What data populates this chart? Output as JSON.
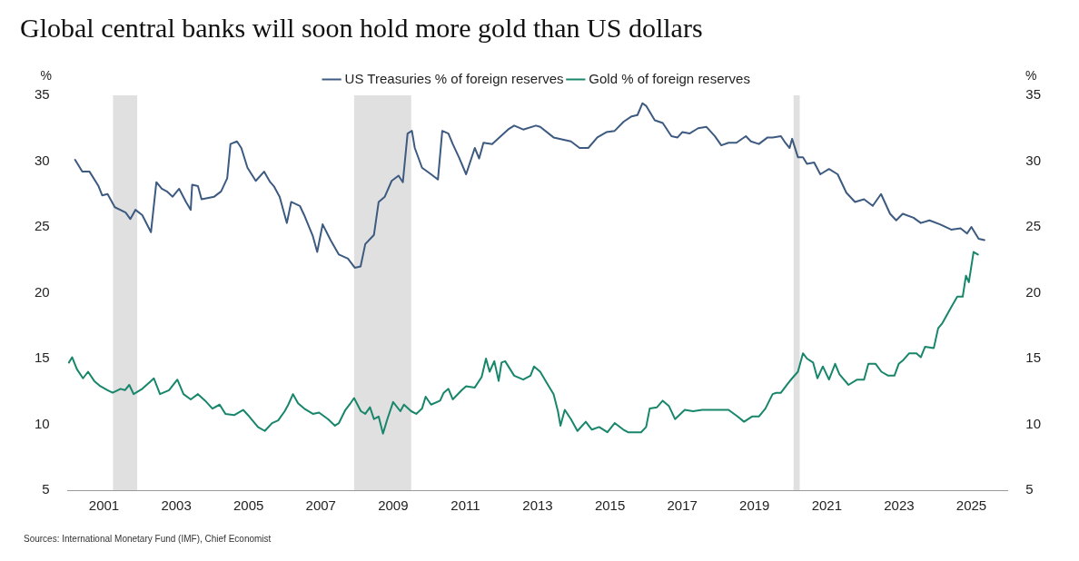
{
  "chart_data": {
    "type": "line",
    "title": "Global central banks will soon hold more gold than US dollars",
    "ylabel": "%",
    "y2label": "%",
    "xlim": [
      2000,
      2026
    ],
    "xticks": [
      2001,
      2003,
      2005,
      2007,
      2009,
      2011,
      2013,
      2015,
      2017,
      2019,
      2021,
      2023,
      2025
    ],
    "ylim": [
      5,
      35
    ],
    "yticks": [
      5,
      10,
      15,
      20,
      25,
      30,
      35
    ],
    "y2lim": [
      5,
      35
    ],
    "y2ticks": [
      5,
      10,
      15,
      20,
      25,
      30,
      35
    ],
    "grid": false,
    "legend": "top",
    "marker": "none",
    "line_style": "solid",
    "bands": [
      {
        "axis": "x",
        "from": 2001.25,
        "to": 2001.92,
        "color": "#e0e0e0"
      },
      {
        "axis": "x",
        "from": 2007.92,
        "to": 2009.5,
        "color": "#e0e0e0"
      },
      {
        "axis": "x",
        "from": 2020.08,
        "to": 2020.25,
        "color": "#e0e0e0"
      }
    ],
    "series": [
      {
        "name": "US Treasuries % of foreign reserves",
        "color": "#3d5a80",
        "x": [
          2000.2,
          2000.4,
          2000.6,
          2000.85,
          2000.95,
          2001.1,
          2001.3,
          2001.6,
          2001.73,
          2001.87,
          2002.06,
          2002.3,
          2002.45,
          2002.6,
          2002.74,
          2002.9,
          2003.08,
          2003.27,
          2003.4,
          2003.44,
          2003.6,
          2003.7,
          2004.05,
          2004.24,
          2004.41,
          2004.5,
          2004.68,
          2004.8,
          2004.97,
          2005.2,
          2005.43,
          2005.6,
          2005.7,
          2005.86,
          2006.06,
          2006.18,
          2006.42,
          2006.54,
          2006.78,
          2006.9,
          2007.05,
          2007.27,
          2007.5,
          2007.75,
          2007.94,
          2008.1,
          2008.23,
          2008.47,
          2008.6,
          2008.77,
          2008.96,
          2009.15,
          2009.27,
          2009.4,
          2009.52,
          2009.6,
          2009.8,
          2010.05,
          2010.24,
          2010.36,
          2010.53,
          2010.65,
          2010.82,
          2011.02,
          2011.26,
          2011.38,
          2011.5,
          2011.74,
          2011.98,
          2012.18,
          2012.35,
          2012.6,
          2012.95,
          2013.07,
          2013.44,
          2013.92,
          2014.16,
          2014.4,
          2014.65,
          2014.9,
          2015.13,
          2015.38,
          2015.6,
          2015.76,
          2015.9,
          2016.0,
          2016.24,
          2016.46,
          2016.7,
          2016.87,
          2017.0,
          2017.2,
          2017.44,
          2017.67,
          2017.9,
          2018.08,
          2018.28,
          2018.5,
          2018.76,
          2018.9,
          2019.12,
          2019.36,
          2019.5,
          2019.73,
          2019.85,
          2019.97,
          2020.04,
          2020.2,
          2020.34,
          2020.45,
          2020.65,
          2020.82,
          2021.06,
          2021.3,
          2021.54,
          2021.78,
          2022.03,
          2022.27,
          2022.5,
          2022.75,
          2022.92,
          2023.1,
          2023.4,
          2023.6,
          2023.84,
          2024.13,
          2024.44,
          2024.7,
          2024.88,
          2025.0,
          2025.2,
          2025.36
        ],
        "values": [
          30.1,
          29.2,
          29.2,
          28.1,
          27.4,
          27.5,
          26.5,
          26.1,
          25.6,
          26.3,
          25.9,
          24.6,
          28.4,
          27.9,
          27.7,
          27.3,
          27.9,
          26.9,
          26.3,
          28.2,
          28.1,
          27.1,
          27.3,
          27.7,
          28.7,
          31.3,
          31.5,
          31.0,
          29.5,
          28.5,
          29.2,
          28.4,
          28.1,
          27.3,
          25.3,
          26.9,
          26.6,
          25.9,
          24.3,
          23.1,
          25.2,
          24.0,
          22.9,
          22.6,
          21.9,
          22.0,
          23.7,
          24.4,
          26.9,
          27.3,
          28.5,
          28.9,
          28.4,
          32.1,
          32.3,
          31.0,
          29.5,
          29.0,
          28.6,
          32.3,
          32.1,
          31.3,
          30.3,
          29.0,
          31.0,
          30.2,
          31.4,
          31.3,
          31.9,
          32.4,
          32.7,
          32.4,
          32.7,
          32.6,
          31.8,
          31.5,
          31.0,
          31.0,
          31.8,
          32.2,
          32.3,
          33.0,
          33.4,
          33.5,
          34.4,
          34.2,
          33.1,
          32.9,
          31.9,
          31.8,
          32.2,
          32.1,
          32.5,
          32.6,
          31.9,
          31.2,
          31.4,
          31.4,
          31.9,
          31.5,
          31.3,
          31.8,
          31.8,
          31.9,
          31.4,
          31.0,
          31.7,
          30.3,
          30.3,
          29.8,
          29.9,
          29.0,
          29.4,
          29.0,
          27.6,
          26.9,
          27.1,
          26.6,
          27.5,
          26.0,
          25.5,
          26.0,
          25.7,
          25.3,
          25.5,
          25.2,
          24.8,
          24.9,
          24.5,
          25.0,
          24.1,
          24.0
        ]
      },
      {
        "name": "Gold % of foreign reserves",
        "color": "#17866a",
        "x": [
          2000.03,
          2000.12,
          2000.25,
          2000.42,
          2000.56,
          2000.73,
          2000.9,
          2001.1,
          2001.24,
          2001.46,
          2001.58,
          2001.7,
          2001.82,
          2002.06,
          2002.3,
          2002.38,
          2002.55,
          2002.8,
          2003.03,
          2003.2,
          2003.4,
          2003.6,
          2003.8,
          2004.0,
          2004.2,
          2004.36,
          2004.6,
          2004.85,
          2005.02,
          2005.26,
          2005.45,
          2005.65,
          2005.82,
          2006.0,
          2006.1,
          2006.23,
          2006.37,
          2006.54,
          2006.78,
          2006.95,
          2007.2,
          2007.39,
          2007.5,
          2007.68,
          2007.82,
          2007.92,
          2008.11,
          2008.23,
          2008.36,
          2008.47,
          2008.6,
          2008.72,
          2008.84,
          2009.0,
          2009.2,
          2009.3,
          2009.5,
          2009.64,
          2009.8,
          2009.9,
          2010.05,
          2010.3,
          2010.4,
          2010.53,
          2010.65,
          2010.9,
          2011.02,
          2011.26,
          2011.45,
          2011.57,
          2011.67,
          2011.8,
          2011.92,
          2012.0,
          2012.1,
          2012.35,
          2012.6,
          2012.8,
          2012.9,
          2013.07,
          2013.24,
          2013.44,
          2013.56,
          2013.63,
          2013.75,
          2013.92,
          2014.1,
          2014.33,
          2014.5,
          2014.7,
          2014.93,
          2015.13,
          2015.37,
          2015.5,
          2015.74,
          2015.86,
          2016.0,
          2016.1,
          2016.3,
          2016.46,
          2016.63,
          2016.8,
          2017.07,
          2017.3,
          2017.55,
          2017.8,
          2018.05,
          2018.28,
          2018.53,
          2018.71,
          2018.93,
          2019.12,
          2019.3,
          2019.5,
          2019.6,
          2019.73,
          2019.92,
          2020.04,
          2020.2,
          2020.34,
          2020.45,
          2020.62,
          2020.74,
          2020.89,
          2021.06,
          2021.23,
          2021.35,
          2021.6,
          2021.84,
          2022.03,
          2022.15,
          2022.35,
          2022.51,
          2022.7,
          2022.87,
          2022.99,
          2023.12,
          2023.28,
          2023.48,
          2023.6,
          2023.72,
          2023.96,
          2024.08,
          2024.2,
          2024.44,
          2024.61,
          2024.76,
          2024.85,
          2024.93,
          2025.06,
          2025.18
        ],
        "values": [
          14.7,
          15.1,
          14.2,
          13.5,
          14.0,
          13.3,
          12.9,
          12.6,
          12.4,
          12.7,
          12.6,
          13.0,
          12.3,
          12.7,
          13.3,
          13.5,
          12.3,
          12.6,
          13.4,
          12.3,
          11.9,
          12.3,
          11.8,
          11.2,
          11.5,
          10.8,
          10.7,
          11.1,
          10.6,
          9.8,
          9.5,
          10.1,
          10.3,
          11.0,
          11.5,
          12.3,
          11.6,
          11.2,
          10.8,
          10.9,
          10.4,
          9.9,
          10.1,
          11.1,
          11.6,
          12.0,
          11.0,
          10.8,
          11.3,
          10.4,
          10.6,
          9.3,
          10.4,
          11.7,
          11.0,
          11.5,
          11.0,
          10.8,
          11.2,
          12.1,
          11.5,
          11.8,
          12.4,
          12.7,
          11.9,
          12.6,
          12.9,
          12.8,
          13.6,
          15.0,
          14.0,
          14.8,
          13.3,
          14.7,
          14.8,
          13.7,
          13.4,
          13.7,
          14.4,
          14.0,
          13.2,
          12.3,
          11.0,
          9.9,
          11.1,
          10.4,
          9.5,
          10.2,
          9.6,
          9.8,
          9.4,
          10.1,
          9.6,
          9.4,
          9.4,
          9.4,
          9.8,
          11.2,
          11.3,
          11.8,
          11.4,
          10.4,
          11.1,
          11.0,
          11.1,
          11.1,
          11.1,
          11.1,
          10.6,
          10.2,
          10.6,
          10.6,
          11.2,
          12.3,
          12.4,
          12.4,
          13.1,
          13.5,
          14.0,
          15.4,
          15.0,
          14.7,
          13.5,
          14.4,
          13.4,
          14.6,
          13.8,
          13.0,
          13.4,
          13.4,
          14.6,
          14.6,
          14.0,
          13.7,
          13.7,
          14.6,
          14.9,
          15.4,
          15.4,
          15.1,
          15.9,
          15.8,
          17.3,
          17.7,
          18.9,
          19.7,
          19.7,
          21.3,
          20.8,
          23.1,
          22.9
        ]
      }
    ],
    "annotations": [
      "Sources: International Monetary Fund (IMF), Chief Economist"
    ]
  }
}
